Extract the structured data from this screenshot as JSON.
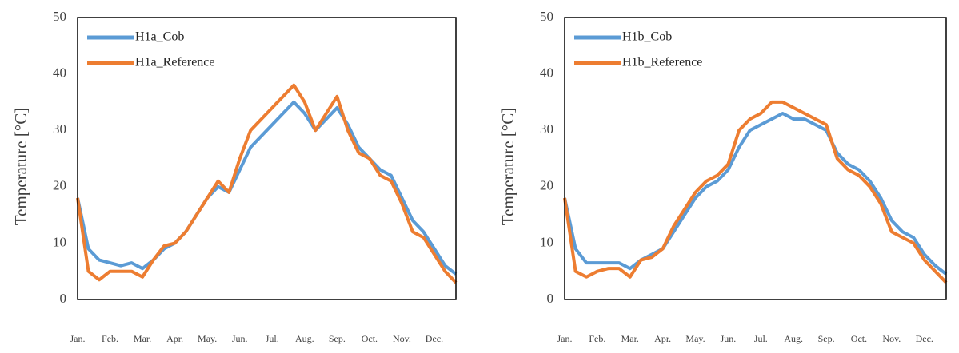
{
  "chart_data": [
    {
      "type": "line",
      "y_label": "Temperature  [°C]",
      "legend": "top-left",
      "categories": [
        "Jan.",
        null,
        null,
        "Feb.",
        null,
        null,
        "Mar.",
        null,
        null,
        "Apr.",
        null,
        null,
        "May.",
        null,
        null,
        "Jun.",
        null,
        null,
        "Jul.",
        null,
        null,
        "Aug.",
        null,
        null,
        "Sep.",
        null,
        null,
        "Oct.",
        null,
        null,
        "Nov.",
        null,
        null,
        "Dec.",
        null,
        null
      ],
      "ylim": [
        0,
        50
      ],
      "yticks": [
        0,
        10,
        20,
        30,
        40,
        50
      ],
      "series": [
        {
          "name": "H1a_Cob",
          "color": "#5b9bd5",
          "values": [
            18,
            9,
            7,
            6.5,
            6,
            6.5,
            5.5,
            7,
            9,
            10,
            12,
            15,
            18,
            20,
            19,
            23,
            27,
            29,
            31,
            33,
            35,
            33,
            30,
            32,
            34,
            31,
            27,
            25,
            23,
            22,
            18,
            14,
            12,
            9,
            6,
            4.5
          ]
        },
        {
          "name": "H1a_Reference",
          "color": "#ed7d31",
          "values": [
            18,
            5,
            3.5,
            5,
            5,
            5,
            4,
            7,
            9.5,
            10,
            12,
            15,
            18,
            21,
            19,
            25,
            30,
            32,
            34,
            36,
            38,
            35,
            30,
            33,
            36,
            30,
            26,
            25,
            22,
            21,
            17,
            12,
            11,
            8,
            5,
            3
          ]
        }
      ]
    },
    {
      "type": "line",
      "y_label": "Temperature  [°C]",
      "legend": "top-left",
      "categories": [
        "Jan.",
        null,
        null,
        "Feb.",
        null,
        null,
        "Mar.",
        null,
        null,
        "Apr.",
        null,
        null,
        "May.",
        null,
        null,
        "Jun.",
        null,
        null,
        "Jul.",
        null,
        null,
        "Aug.",
        null,
        null,
        "Sep.",
        null,
        null,
        "Oct.",
        null,
        null,
        "Nov.",
        null,
        null,
        "Dec.",
        null,
        null
      ],
      "ylim": [
        0,
        50
      ],
      "yticks": [
        0,
        10,
        20,
        30,
        40,
        50
      ],
      "series": [
        {
          "name": "H1b_Cob",
          "color": "#5b9bd5",
          "values": [
            18,
            9,
            6.5,
            6.5,
            6.5,
            6.5,
            5.5,
            7,
            8,
            9,
            12,
            15,
            18,
            20,
            21,
            23,
            27,
            30,
            31,
            32,
            33,
            32,
            32,
            31,
            30,
            26,
            24,
            23,
            21,
            18,
            14,
            12,
            11,
            8,
            6,
            4.5
          ]
        },
        {
          "name": "H1b_Reference",
          "color": "#ed7d31",
          "values": [
            18,
            5,
            4,
            5,
            5.5,
            5.5,
            4,
            7,
            7.5,
            9,
            13,
            16,
            19,
            21,
            22,
            24,
            30,
            32,
            33,
            35,
            35,
            34,
            33,
            32,
            31,
            25,
            23,
            22,
            20,
            17,
            12,
            11,
            10,
            7,
            5,
            3
          ]
        }
      ]
    }
  ]
}
